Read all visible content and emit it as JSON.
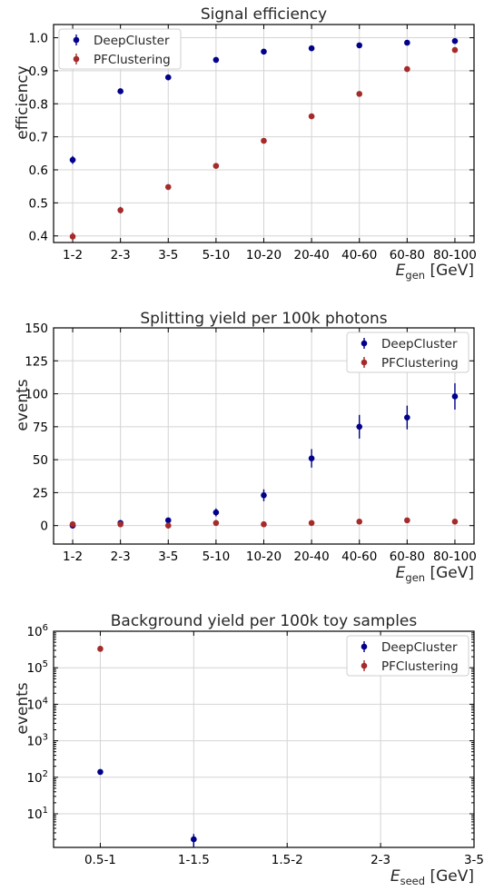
{
  "chart_data": [
    {
      "type": "scatter",
      "title": "Signal efficiency",
      "ylabel": "efficiency",
      "xlabel_main": "E",
      "xlabel_sub": "gen",
      "xlabel_unit": " [GeV]",
      "categories": [
        "1-2",
        "2-3",
        "3-5",
        "5-10",
        "10-20",
        "20-40",
        "40-60",
        "60-80",
        "80-100"
      ],
      "ylim": [
        0.38,
        1.04
      ],
      "yscale": "linear",
      "yticks": [
        0.4,
        0.5,
        0.6,
        0.7,
        0.8,
        0.9,
        1.0
      ],
      "ytick_labels": [
        "0.4",
        "0.5",
        "0.6",
        "0.7",
        "0.8",
        "0.9",
        "1.0"
      ],
      "grid": true,
      "legend_position": "top-left",
      "series": [
        {
          "name": "DeepCluster",
          "color": "#00008b",
          "values": [
            0.63,
            0.838,
            0.88,
            0.933,
            0.958,
            0.968,
            0.977,
            0.985,
            0.99
          ],
          "errors": [
            0.012,
            0.008,
            0.006,
            0.004,
            0.003,
            0.003,
            0.003,
            0.002,
            0.002
          ]
        },
        {
          "name": "PFClustering",
          "color": "#a52a2a",
          "values": [
            0.398,
            0.478,
            0.548,
            0.612,
            0.688,
            0.762,
            0.83,
            0.905,
            0.963
          ],
          "errors": [
            0.012,
            0.01,
            0.008,
            0.006,
            0.005,
            0.004,
            0.004,
            0.004,
            0.004
          ]
        }
      ]
    },
    {
      "type": "scatter",
      "title": "Splitting yield per 100k photons",
      "ylabel": "events",
      "xlabel_main": "E",
      "xlabel_sub": "gen",
      "xlabel_unit": " [GeV]",
      "categories": [
        "1-2",
        "2-3",
        "3-5",
        "5-10",
        "10-20",
        "20-40",
        "40-60",
        "60-80",
        "80-100"
      ],
      "ylim": [
        -14,
        150
      ],
      "yscale": "linear",
      "yticks": [
        0,
        25,
        50,
        75,
        100,
        125,
        150
      ],
      "ytick_labels": [
        "0",
        "25",
        "50",
        "75",
        "100",
        "125",
        "150"
      ],
      "grid": true,
      "legend_position": "top-right",
      "series": [
        {
          "name": "DeepCluster",
          "color": "#00008b",
          "values": [
            0,
            2,
            4,
            10,
            23,
            51,
            75,
            82,
            98
          ],
          "errors": [
            1,
            1.5,
            2,
            3,
            4.5,
            7,
            9,
            9,
            10
          ]
        },
        {
          "name": "PFClustering",
          "color": "#a52a2a",
          "values": [
            1,
            1,
            0,
            2,
            1,
            2,
            3,
            4,
            3
          ],
          "errors": [
            1,
            1,
            0.8,
            1,
            1,
            1,
            1.2,
            1.5,
            1.5
          ]
        }
      ]
    },
    {
      "type": "scatter",
      "title": "Background yield per 100k toy samples",
      "ylabel": "events",
      "xlabel_main": "E",
      "xlabel_sub": "seed",
      "xlabel_unit": " [GeV]",
      "categories": [
        "0.5-1",
        "1-1.5",
        "1.5-2",
        "2-3",
        "3-5"
      ],
      "xlim": [
        -0.5,
        4.0
      ],
      "ylim": [
        1.2,
        1000000
      ],
      "yscale": "log",
      "yticks": [
        10,
        100,
        1000,
        10000,
        100000,
        1000000
      ],
      "ytick_labels": [
        "10^1",
        "10^2",
        "10^3",
        "10^4",
        "10^5",
        "10^6"
      ],
      "grid": true,
      "legend_position": "top-right",
      "series": [
        {
          "name": "DeepCluster",
          "color": "#00008b",
          "x": [
            "0.5-1",
            "1-1.5"
          ],
          "values": [
            140,
            2
          ],
          "errors": [
            12,
            0.8
          ]
        },
        {
          "name": "PFClustering",
          "color": "#a52a2a",
          "x": [
            "0.5-1"
          ],
          "values": [
            330000
          ],
          "errors": [
            5000
          ]
        }
      ]
    }
  ]
}
